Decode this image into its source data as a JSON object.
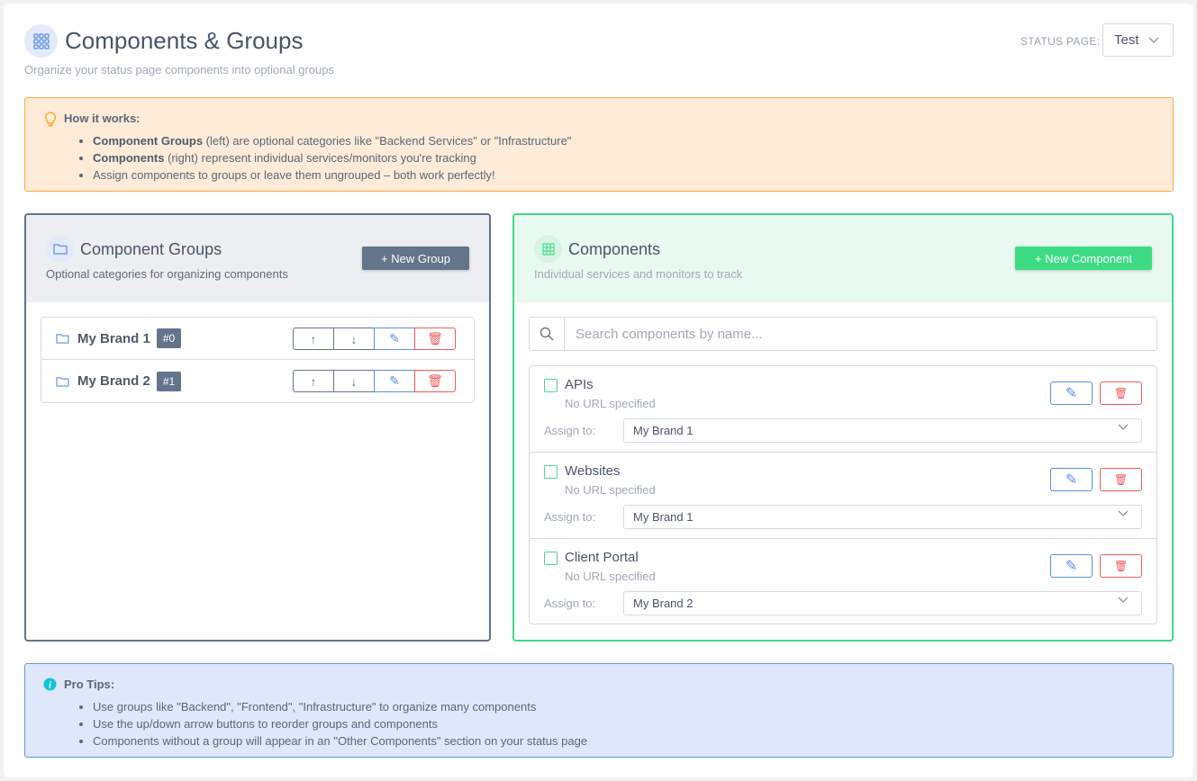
{
  "header": {
    "title": "Components & Groups",
    "subtitle": "Organize your status page components into optional groups",
    "status_page_label": "STATUS PAGE:",
    "status_page_value": "Test"
  },
  "how_it_works": {
    "title": "How it works:",
    "items": [
      {
        "bold": "Component Groups",
        "text": " (left) are optional categories like \"Backend Services\" or \"Infrastructure\""
      },
      {
        "bold": "Components",
        "text": " (right) represent individual services/monitors you're tracking"
      },
      {
        "bold": "",
        "text": "Assign components to groups or leave them ungrouped – both work perfectly!"
      }
    ]
  },
  "groups_panel": {
    "title": "Component Groups",
    "subtitle": "Optional categories for organizing components",
    "new_button": "+ New Group",
    "groups": [
      {
        "name": "My Brand 1",
        "badge": "#0"
      },
      {
        "name": "My Brand 2",
        "badge": "#1"
      }
    ]
  },
  "components_panel": {
    "title": "Components",
    "subtitle": "Individual services and monitors to track",
    "new_button": "+ New Component",
    "search_placeholder": "Search components by name...",
    "assign_label": "Assign to:",
    "components": [
      {
        "name": "APIs",
        "url": "No URL specified",
        "group": "My Brand 1"
      },
      {
        "name": "Websites",
        "url": "No URL specified",
        "group": "My Brand 1"
      },
      {
        "name": "Client Portal",
        "url": "No URL specified",
        "group": "My Brand 2"
      }
    ]
  },
  "pro_tips": {
    "title": "Pro Tips:",
    "items": [
      "Use groups like \"Backend\", \"Frontend\", \"Infrastructure\" to organize many components",
      "Use the up/down arrow buttons to reorder groups and components",
      "Components without a group will appear in an \"Other Components\" section on your status page"
    ]
  },
  "colors": {
    "groups_accent": "#64748b",
    "components_accent": "#3ddc84",
    "edit": "#5b8ee8",
    "delete": "#ef5b5b",
    "info_bg": "#feecd9",
    "tips_bg": "#dfe7fb"
  }
}
